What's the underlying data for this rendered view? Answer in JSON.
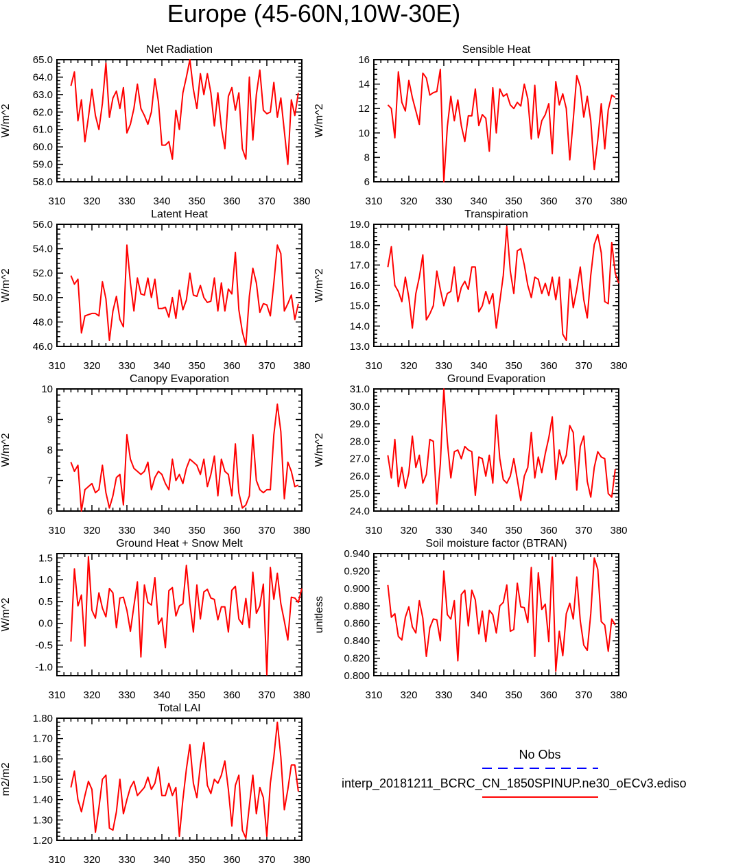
{
  "title": "Europe (45-60N,10W-30E)",
  "colors": {
    "series": "#ff0000",
    "obs": "#0000ff",
    "axis": "#000000"
  },
  "legend": {
    "obs_label": "No Obs",
    "model_label": "interp_20181211_BCRC_CN_1850SPINUP.ne30_oECv3.ediso"
  },
  "chart_data": [
    {
      "type": "line",
      "title": "Net Radiation",
      "ylabel": "W/m^2",
      "xlim": [
        310,
        380
      ],
      "xticks": [
        310,
        320,
        330,
        340,
        350,
        360,
        370,
        380
      ],
      "ylim": [
        58,
        65
      ],
      "yticks": [
        58,
        59,
        60,
        61,
        62,
        63,
        64,
        65
      ],
      "yticklabels": [
        "58.0",
        "59.0",
        "60.0",
        "61.0",
        "62.0",
        "63.0",
        "64.0",
        "65.0"
      ],
      "x0": 314,
      "values": [
        63.5,
        64.3,
        61.5,
        62.7,
        60.3,
        61.7,
        63.3,
        61.8,
        61.0,
        62.5,
        64.8,
        61.7,
        62.8,
        63.2,
        62.2,
        63.4,
        60.8,
        61.3,
        62.2,
        63.6,
        62.2,
        61.8,
        61.3,
        62.0,
        63.9,
        62.6,
        60.1,
        60.1,
        60.3,
        59.3,
        62.1,
        61.0,
        63.1,
        64.0,
        65.0,
        63.3,
        62.2,
        64.2,
        63.0,
        64.2,
        63.1,
        61.2,
        63.1,
        61.1,
        59.9,
        62.9,
        63.4,
        62.1,
        63.1,
        59.9,
        59.3,
        64.0,
        60.4,
        63.0,
        64.4,
        62.1,
        61.9,
        62.0,
        63.7,
        61.7,
        62.8,
        60.9,
        59.0,
        62.7,
        61.8,
        63.1
      ]
    },
    {
      "type": "line",
      "title": "Sensible Heat",
      "ylabel": "W/m^2",
      "xlim": [
        310,
        380
      ],
      "xticks": [
        310,
        320,
        330,
        340,
        350,
        360,
        370,
        380
      ],
      "ylim": [
        6,
        16
      ],
      "yticks": [
        6,
        8,
        10,
        12,
        14,
        16
      ],
      "yticklabels": [
        "6",
        "8",
        "10",
        "12",
        "14",
        "16"
      ],
      "x0": 314,
      "values": [
        12.3,
        12.0,
        9.6,
        15.0,
        12.5,
        11.8,
        14.3,
        12.9,
        11.8,
        10.7,
        14.9,
        14.5,
        13.1,
        13.3,
        13.4,
        15.2,
        6.0,
        10.5,
        13.0,
        11.0,
        12.7,
        10.6,
        9.3,
        11.4,
        11.4,
        13.6,
        10.6,
        11.5,
        11.2,
        8.5,
        13.7,
        10.0,
        13.6,
        13.0,
        13.2,
        12.3,
        12.0,
        12.5,
        12.2,
        14.0,
        12.8,
        9.5,
        13.9,
        9.6,
        11.0,
        11.5,
        12.4,
        8.3,
        14.2,
        12.3,
        13.2,
        12.0,
        7.8,
        11.1,
        14.7,
        13.8,
        11.3,
        13.0,
        11.0,
        7.0,
        9.4,
        12.4,
        8.7,
        11.9,
        13.1,
        12.9
      ]
    },
    {
      "type": "line",
      "title": "Latent Heat",
      "ylabel": "W/m^2",
      "xlim": [
        310,
        380
      ],
      "xticks": [
        310,
        320,
        330,
        340,
        350,
        360,
        370,
        380
      ],
      "ylim": [
        46,
        56
      ],
      "yticks": [
        46,
        48,
        50,
        52,
        54,
        56
      ],
      "yticklabels": [
        "46.0",
        "48.0",
        "50.0",
        "52.0",
        "54.0",
        "56.0"
      ],
      "x0": 314,
      "values": [
        51.8,
        51.1,
        51.5,
        47.1,
        48.5,
        48.6,
        48.7,
        48.7,
        48.5,
        51.3,
        49.9,
        46.5,
        48.9,
        50.1,
        48.2,
        47.6,
        54.3,
        51.2,
        48.9,
        51.6,
        50.3,
        50.2,
        51.6,
        50.0,
        51.5,
        49.1,
        49.1,
        49.2,
        48.4,
        50.0,
        48.3,
        50.6,
        49.0,
        49.8,
        52.0,
        50.2,
        50.1,
        51.0,
        50.0,
        49.6,
        49.7,
        51.6,
        48.9,
        51.2,
        48.9,
        50.7,
        50.3,
        53.7,
        49.0,
        47.2,
        46.1,
        50.1,
        52.4,
        51.2,
        48.8,
        49.5,
        49.4,
        48.5,
        51.2,
        54.3,
        53.6,
        48.9,
        49.5,
        50.2,
        48.2,
        49.5
      ]
    },
    {
      "type": "line",
      "title": "Transpiration",
      "ylabel": "W/m^2",
      "xlim": [
        310,
        380
      ],
      "xticks": [
        310,
        320,
        330,
        340,
        350,
        360,
        370,
        380
      ],
      "ylim": [
        13,
        19
      ],
      "yticks": [
        13,
        14,
        15,
        16,
        17,
        18,
        19
      ],
      "yticklabels": [
        "13.0",
        "14.0",
        "15.0",
        "16.0",
        "17.0",
        "18.0",
        "19.0"
      ],
      "x0": 314,
      "values": [
        16.9,
        17.9,
        16.0,
        15.7,
        15.2,
        16.4,
        15.4,
        13.9,
        15.6,
        16.4,
        17.5,
        14.3,
        14.6,
        15.0,
        16.7,
        15.8,
        15.0,
        15.6,
        15.7,
        16.9,
        15.2,
        15.9,
        16.2,
        15.8,
        16.9,
        16.9,
        14.7,
        15.0,
        15.7,
        15.1,
        15.6,
        13.9,
        15.2,
        16.5,
        18.9,
        16.7,
        15.6,
        17.7,
        17.8,
        17.0,
        16.0,
        15.4,
        16.4,
        16.3,
        15.6,
        16.1,
        15.5,
        16.4,
        15.3,
        16.4,
        13.6,
        13.3,
        16.3,
        14.9,
        15.8,
        16.9,
        15.3,
        14.4,
        16.5,
        18.0,
        18.5,
        17.6,
        15.2,
        15.1,
        18.1,
        16.6,
        16.1
      ]
    },
    {
      "type": "line",
      "title": "Canopy Evaporation",
      "ylabel": "W/m^2",
      "xlim": [
        310,
        380
      ],
      "xticks": [
        310,
        320,
        330,
        340,
        350,
        360,
        370,
        380
      ],
      "ylim": [
        6,
        10
      ],
      "yticks": [
        6,
        7,
        8,
        9,
        10
      ],
      "yticklabels": [
        "6",
        "7",
        "8",
        "9",
        "10"
      ],
      "x0": 314,
      "values": [
        7.6,
        7.3,
        7.5,
        6.0,
        6.7,
        6.8,
        6.9,
        6.6,
        6.7,
        7.5,
        6.6,
        6.1,
        6.5,
        7.1,
        7.2,
        6.2,
        8.5,
        7.7,
        7.4,
        7.3,
        7.2,
        7.3,
        7.6,
        6.7,
        7.1,
        7.3,
        7.2,
        6.9,
        6.7,
        7.7,
        7.0,
        7.2,
        6.9,
        7.4,
        7.7,
        7.6,
        7.5,
        7.2,
        7.7,
        6.8,
        7.2,
        7.8,
        6.5,
        7.7,
        7.3,
        7.2,
        6.5,
        8.2,
        6.6,
        6.1,
        6.2,
        6.5,
        8.5,
        7.0,
        6.7,
        6.6,
        6.7,
        6.7,
        8.5,
        9.5,
        8.6,
        6.4,
        7.6,
        7.3,
        6.8,
        6.85
      ]
    },
    {
      "type": "line",
      "title": "Ground Evaporation",
      "ylabel": "W/m^2",
      "xlim": [
        310,
        380
      ],
      "xticks": [
        310,
        320,
        330,
        340,
        350,
        360,
        370,
        380
      ],
      "ylim": [
        24,
        31
      ],
      "yticks": [
        24,
        25,
        26,
        27,
        28,
        29,
        30,
        31
      ],
      "yticklabels": [
        "24.0",
        "25.0",
        "26.0",
        "27.0",
        "28.0",
        "29.0",
        "30.0",
        "31.0"
      ],
      "x0": 314,
      "values": [
        27.2,
        25.9,
        28.1,
        25.4,
        26.5,
        25.3,
        26.2,
        28.3,
        26.5,
        27.2,
        25.6,
        26.1,
        28.1,
        28.0,
        24.4,
        26.7,
        31.0,
        28.0,
        25.9,
        27.4,
        27.5,
        27.0,
        27.7,
        27.5,
        27.4,
        24.9,
        27.1,
        27.0,
        26.0,
        27.2,
        25.6,
        29.5,
        27.0,
        25.8,
        25.6,
        26.0,
        27.0,
        25.8,
        24.6,
        26.0,
        26.5,
        28.5,
        25.9,
        27.1,
        26.2,
        27.3,
        28.2,
        29.4,
        25.8,
        27.5,
        26.7,
        27.2,
        28.9,
        28.5,
        25.2,
        27.7,
        28.3,
        25.7,
        24.8,
        26.5,
        27.4,
        27.1,
        27.0,
        25.0,
        24.8,
        26.4
      ]
    },
    {
      "type": "line",
      "title": "Ground Heat + Snow Melt",
      "ylabel": "W/m^2",
      "xlim": [
        310,
        380
      ],
      "xticks": [
        310,
        320,
        330,
        340,
        350,
        360,
        370,
        380
      ],
      "ylim": [
        -1.2,
        1.6
      ],
      "yticks": [
        -1.0,
        -0.5,
        0.0,
        0.5,
        1.0,
        1.5
      ],
      "yticklabels": [
        "-1.0",
        "-0.5",
        "0.0",
        "0.5",
        "1.0",
        "1.5"
      ],
      "x0": 314,
      "values": [
        -0.42,
        1.25,
        0.4,
        0.65,
        -0.52,
        1.53,
        0.3,
        0.12,
        0.7,
        0.35,
        0.15,
        0.8,
        0.7,
        -0.1,
        0.58,
        0.6,
        0.3,
        -0.18,
        0.4,
        0.95,
        -0.77,
        0.88,
        0.48,
        0.42,
        1.05,
        -0.02,
        0.12,
        -0.56,
        0.75,
        0.82,
        0.17,
        0.4,
        0.45,
        1.33,
        0.45,
        -0.2,
        0.88,
        0.1,
        0.72,
        0.78,
        0.58,
        0.55,
        0.08,
        0.38,
        0.38,
        -0.2,
        0.76,
        0.85,
        0.1,
        -0.02,
        0.57,
        -0.1,
        1.17,
        0.23,
        0.4,
        0.9,
        -1.18,
        1.28,
        0.55,
        1.15,
        0.45,
        0.05,
        -0.38,
        0.6,
        0.58,
        0.48,
        0.8
      ]
    },
    {
      "type": "line",
      "title": "Soil moisture factor (BTRAN)",
      "ylabel": "unitless",
      "xlim": [
        310,
        380
      ],
      "xticks": [
        310,
        320,
        330,
        340,
        350,
        360,
        370,
        380
      ],
      "ylim": [
        0.8,
        0.94
      ],
      "yticks": [
        0.8,
        0.82,
        0.84,
        0.86,
        0.88,
        0.9,
        0.92,
        0.94
      ],
      "yticklabels": [
        "0.800",
        "0.820",
        "0.840",
        "0.860",
        "0.880",
        "0.900",
        "0.920",
        "0.940"
      ],
      "x0": 314,
      "values": [
        0.904,
        0.867,
        0.871,
        0.845,
        0.841,
        0.867,
        0.879,
        0.856,
        0.849,
        0.886,
        0.866,
        0.822,
        0.855,
        0.865,
        0.864,
        0.84,
        0.92,
        0.87,
        0.865,
        0.886,
        0.817,
        0.893,
        0.898,
        0.857,
        0.898,
        0.887,
        0.848,
        0.874,
        0.839,
        0.875,
        0.87,
        0.849,
        0.88,
        0.884,
        0.904,
        0.851,
        0.853,
        0.906,
        0.879,
        0.878,
        0.861,
        0.924,
        0.822,
        0.918,
        0.876,
        0.882,
        0.839,
        0.936,
        0.805,
        0.851,
        0.823,
        0.871,
        0.883,
        0.865,
        0.913,
        0.863,
        0.835,
        0.829,
        0.871,
        0.935,
        0.922,
        0.862,
        0.858,
        0.828,
        0.865,
        0.858
      ]
    },
    {
      "type": "line",
      "title": "Total LAI",
      "ylabel": "m2/m2",
      "xlim": [
        310,
        380
      ],
      "xticks": [
        310,
        320,
        330,
        340,
        350,
        360,
        370,
        380
      ],
      "ylim": [
        1.2,
        1.8
      ],
      "yticks": [
        1.2,
        1.3,
        1.4,
        1.5,
        1.6,
        1.7,
        1.8
      ],
      "yticklabels": [
        "1.20",
        "1.30",
        "1.40",
        "1.50",
        "1.60",
        "1.70",
        "1.80"
      ],
      "x0": 314,
      "values": [
        1.46,
        1.54,
        1.4,
        1.34,
        1.42,
        1.49,
        1.45,
        1.24,
        1.36,
        1.5,
        1.52,
        1.26,
        1.25,
        1.34,
        1.5,
        1.33,
        1.4,
        1.46,
        1.49,
        1.42,
        1.44,
        1.46,
        1.51,
        1.45,
        1.48,
        1.56,
        1.42,
        1.42,
        1.48,
        1.42,
        1.46,
        1.22,
        1.4,
        1.55,
        1.67,
        1.48,
        1.41,
        1.57,
        1.68,
        1.47,
        1.43,
        1.5,
        1.48,
        1.52,
        1.59,
        1.45,
        1.27,
        1.47,
        1.52,
        1.25,
        1.21,
        1.37,
        1.52,
        1.33,
        1.46,
        1.41,
        1.22,
        1.48,
        1.61,
        1.78,
        1.61,
        1.35,
        1.45,
        1.57,
        1.57,
        1.44
      ]
    }
  ]
}
